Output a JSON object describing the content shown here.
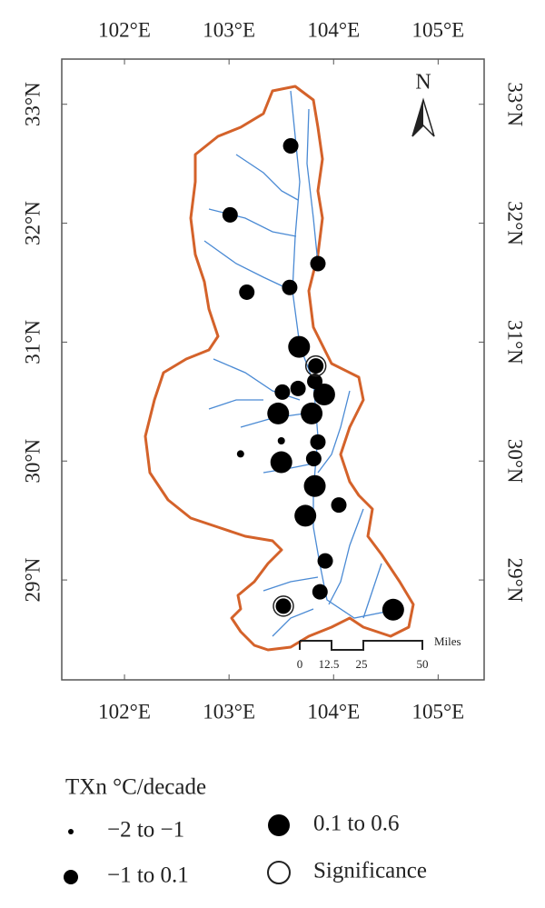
{
  "map": {
    "xlim": [
      101.4,
      105.44
    ],
    "ylim": [
      28.16,
      33.38
    ],
    "xticks": [
      {
        "value": 102,
        "label": "102°E"
      },
      {
        "value": 103,
        "label": "103°E"
      },
      {
        "value": 104,
        "label": "104°E"
      },
      {
        "value": 105,
        "label": "105°E"
      }
    ],
    "yticks": [
      {
        "value": 29,
        "label": "29°N"
      },
      {
        "value": 30,
        "label": "30°N"
      },
      {
        "value": 31,
        "label": "31°N"
      },
      {
        "value": 32,
        "label": "32°N"
      },
      {
        "value": 33,
        "label": "33°N"
      }
    ],
    "north": "N",
    "scale_bar": {
      "labels": [
        "0",
        "12.5",
        "25",
        "50"
      ],
      "unit": "Miles"
    }
  },
  "legend": {
    "title": "TXn °C/decade",
    "items": [
      {
        "label": "−2 to −1",
        "points": [
          [
            103.5,
            30.17
          ],
          [
            103.11,
            30.06
          ]
        ]
      },
      {
        "label": "−1 to 0.1",
        "points": [
          [
            103.59,
            32.65
          ],
          [
            103.01,
            32.07
          ],
          [
            103.85,
            31.66
          ],
          [
            103.17,
            31.42
          ],
          [
            103.58,
            31.46
          ],
          [
            103.83,
            30.8
          ],
          [
            103.82,
            30.67
          ],
          [
            103.66,
            30.61
          ],
          [
            103.51,
            30.58
          ],
          [
            103.85,
            30.16
          ],
          [
            103.81,
            30.02
          ],
          [
            104.05,
            29.63
          ],
          [
            103.92,
            29.16
          ],
          [
            103.87,
            28.9
          ],
          [
            103.52,
            28.78
          ]
        ]
      },
      {
        "label": "0.1 to 0.6",
        "points": [
          [
            103.67,
            30.96
          ],
          [
            103.91,
            30.56
          ],
          [
            103.47,
            30.4
          ],
          [
            103.79,
            30.4
          ],
          [
            103.5,
            29.99
          ],
          [
            103.82,
            29.79
          ],
          [
            103.73,
            29.54
          ],
          [
            104.57,
            28.75
          ]
        ]
      },
      {
        "label": "Significance",
        "points": [
          [
            103.83,
            30.8
          ],
          [
            103.52,
            28.78
          ]
        ]
      }
    ]
  }
}
